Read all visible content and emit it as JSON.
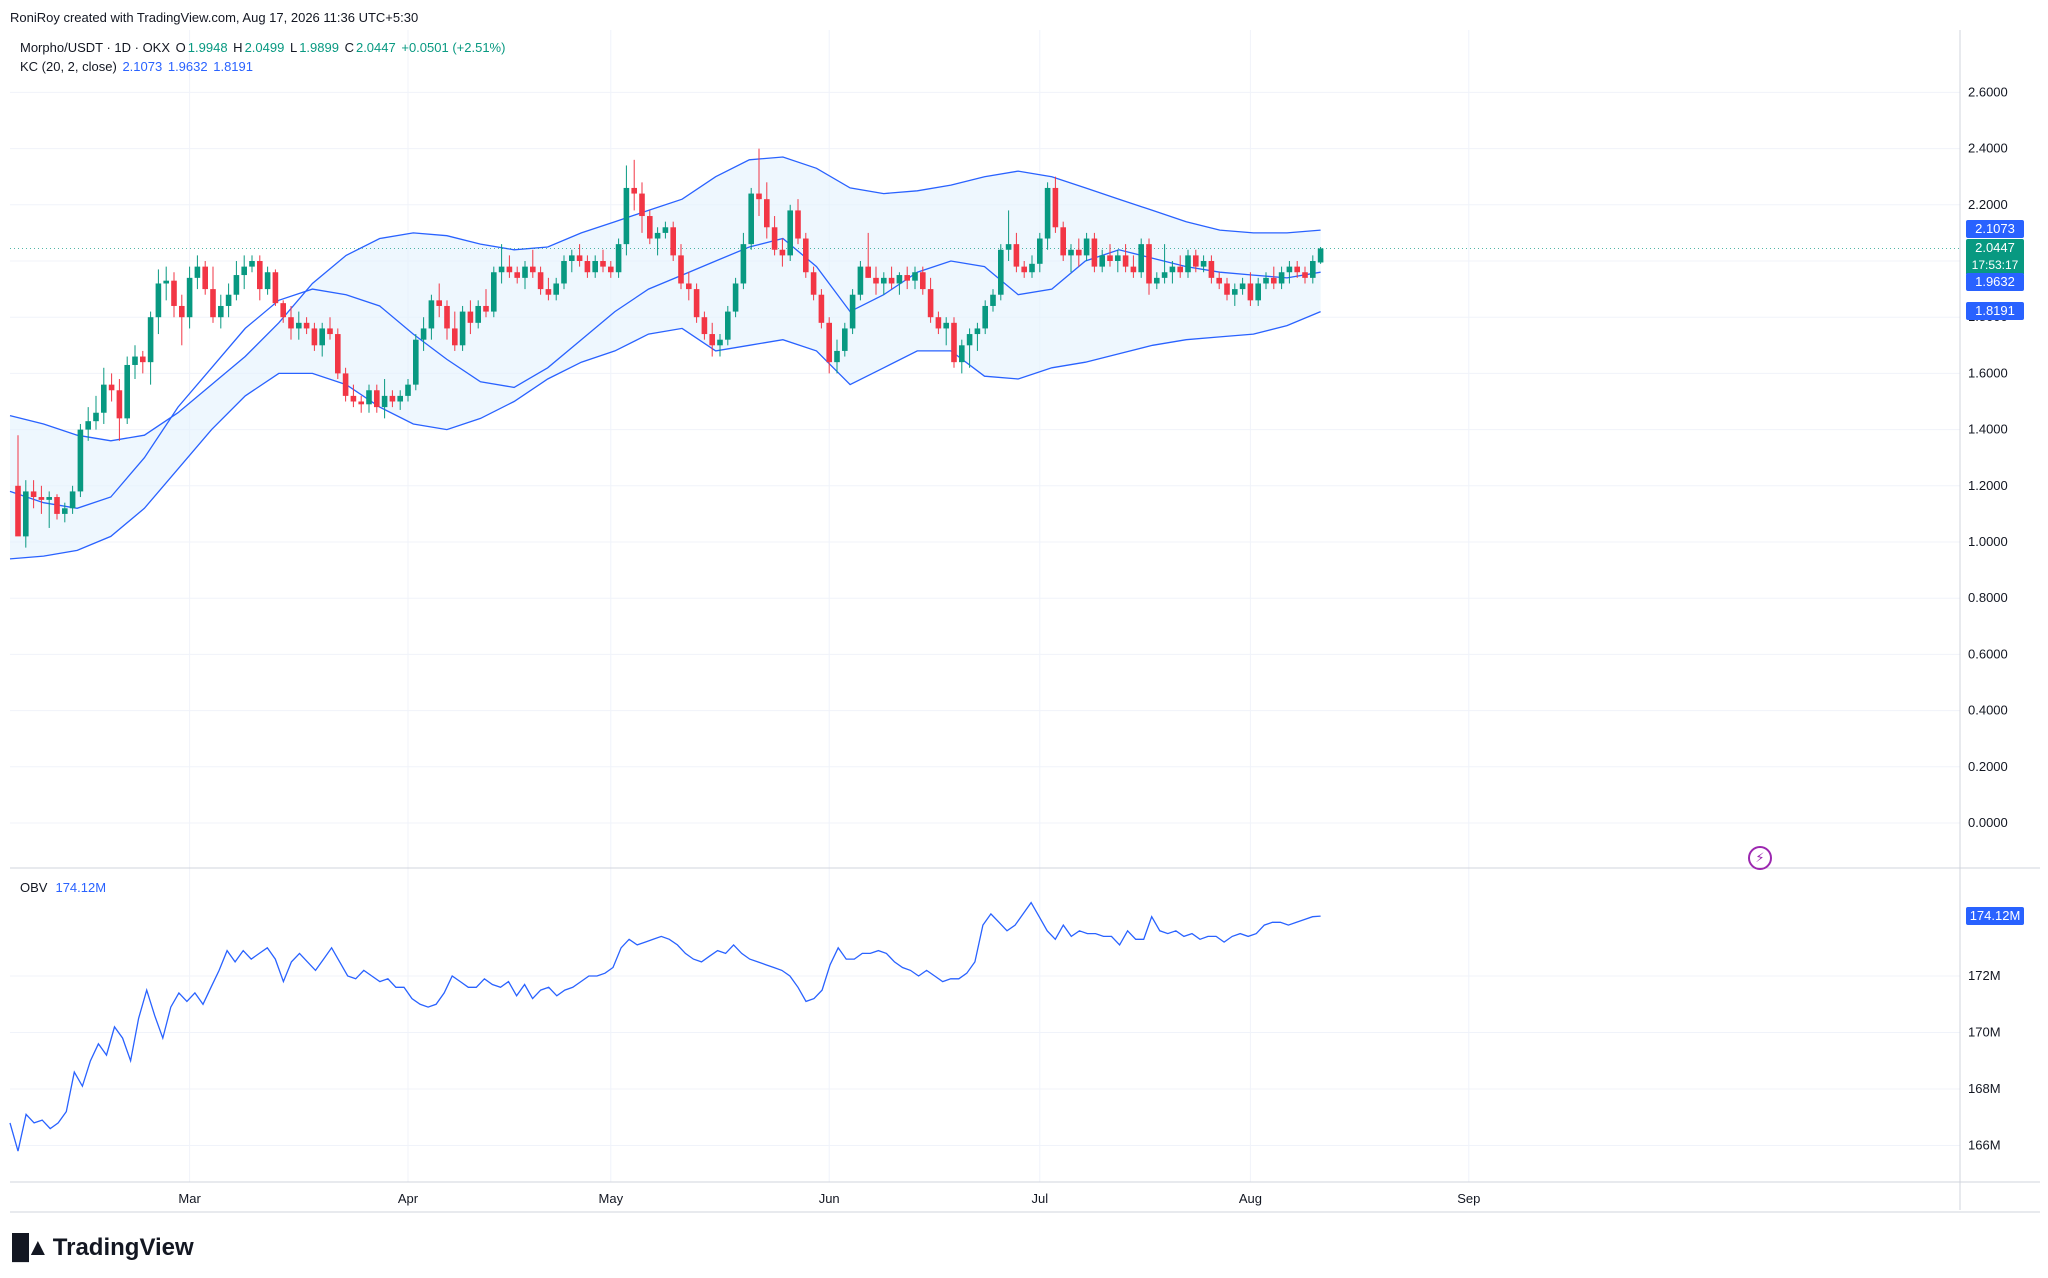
{
  "header": {
    "created_by": "RoniRoy created with TradingView.com, Aug 17, 2026 11:36 UTC+5:30"
  },
  "legend": {
    "symbol": "Morpho/USDT · 1D · OKX",
    "open_label": "O",
    "open": "1.9948",
    "high_label": "H",
    "high": "2.0499",
    "low_label": "L",
    "low": "1.9899",
    "close_label": "C",
    "close": "2.0447",
    "change": "+0.0501 (+2.51%)",
    "kc_label": "KC (20, 2, close)",
    "kc_upper": "2.1073",
    "kc_middle": "1.9632",
    "kc_lower": "1.8191",
    "obv_label": "OBV",
    "obv_value": "174.12M"
  },
  "price_tags": {
    "upper": "2.1073",
    "last": "2.0447",
    "countdown": "17:53:17",
    "middle": "1.9632",
    "lower": "1.8191",
    "obv": "174.12M"
  },
  "colors": {
    "up": "#089981",
    "down": "#f23645",
    "band": "#2962ff",
    "band_fill": "#e3f2fd",
    "grid": "#f0f3fa",
    "axis_text": "#131722"
  },
  "brand": {
    "name": "TradingView"
  },
  "chart_data": [
    {
      "type": "candlestick",
      "title": "Morpho/USDT · 1D · OKX",
      "x_axis_labels": [
        "Mar",
        "Apr",
        "May",
        "Jun",
        "Jul",
        "Aug",
        "Sep"
      ],
      "y_axis_ticks": [
        "2.6000",
        "2.4000",
        "2.2000",
        "2.0000",
        "1.8000",
        "1.6000",
        "1.4000",
        "1.2000",
        "1.0000",
        "0.8000",
        "0.6000",
        "0.4000",
        "0.2000",
        "0.0000"
      ],
      "ylim": [
        -0.1,
        2.8
      ],
      "grid": true,
      "candles_ohlc": [
        [
          1.2,
          1.38,
          1.12,
          1.02
        ],
        [
          1.02,
          1.22,
          0.98,
          1.18
        ],
        [
          1.18,
          1.22,
          1.12,
          1.16
        ],
        [
          1.16,
          1.2,
          1.1,
          1.15
        ],
        [
          1.15,
          1.18,
          1.05,
          1.16
        ],
        [
          1.16,
          1.17,
          1.08,
          1.1
        ],
        [
          1.1,
          1.14,
          1.07,
          1.12
        ],
        [
          1.12,
          1.2,
          1.1,
          1.18
        ],
        [
          1.18,
          1.42,
          1.16,
          1.4
        ],
        [
          1.4,
          1.48,
          1.36,
          1.43
        ],
        [
          1.43,
          1.52,
          1.4,
          1.46
        ],
        [
          1.46,
          1.62,
          1.42,
          1.56
        ],
        [
          1.56,
          1.6,
          1.5,
          1.54
        ],
        [
          1.54,
          1.58,
          1.36,
          1.44
        ],
        [
          1.44,
          1.66,
          1.42,
          1.63
        ],
        [
          1.63,
          1.7,
          1.58,
          1.66
        ],
        [
          1.66,
          1.68,
          1.6,
          1.64
        ],
        [
          1.64,
          1.82,
          1.56,
          1.8
        ],
        [
          1.8,
          1.97,
          1.74,
          1.92
        ],
        [
          1.92,
          1.98,
          1.86,
          1.93
        ],
        [
          1.93,
          1.96,
          1.8,
          1.84
        ],
        [
          1.84,
          1.88,
          1.7,
          1.8
        ],
        [
          1.8,
          1.98,
          1.76,
          1.94
        ],
        [
          1.94,
          2.02,
          1.9,
          1.98
        ],
        [
          1.98,
          2.0,
          1.88,
          1.9
        ],
        [
          1.9,
          1.98,
          1.78,
          1.8
        ],
        [
          1.8,
          1.88,
          1.76,
          1.84
        ],
        [
          1.84,
          1.92,
          1.8,
          1.88
        ],
        [
          1.88,
          2.0,
          1.86,
          1.95
        ],
        [
          1.95,
          2.02,
          1.9,
          1.98
        ],
        [
          1.98,
          2.02,
          1.96,
          2.0
        ],
        [
          2.0,
          2.02,
          1.86,
          1.9
        ],
        [
          1.9,
          1.98,
          1.88,
          1.96
        ],
        [
          1.96,
          1.97,
          1.84,
          1.85
        ],
        [
          1.85,
          1.86,
          1.78,
          1.8
        ],
        [
          1.8,
          1.84,
          1.72,
          1.76
        ],
        [
          1.76,
          1.82,
          1.72,
          1.78
        ],
        [
          1.78,
          1.8,
          1.74,
          1.76
        ],
        [
          1.76,
          1.78,
          1.68,
          1.7
        ],
        [
          1.7,
          1.78,
          1.66,
          1.76
        ],
        [
          1.76,
          1.8,
          1.72,
          1.74
        ],
        [
          1.74,
          1.76,
          1.58,
          1.6
        ],
        [
          1.6,
          1.62,
          1.5,
          1.52
        ],
        [
          1.52,
          1.56,
          1.48,
          1.5
        ],
        [
          1.5,
          1.52,
          1.46,
          1.49
        ],
        [
          1.49,
          1.56,
          1.46,
          1.54
        ],
        [
          1.54,
          1.56,
          1.46,
          1.48
        ],
        [
          1.48,
          1.58,
          1.44,
          1.52
        ],
        [
          1.52,
          1.54,
          1.48,
          1.5
        ],
        [
          1.5,
          1.54,
          1.47,
          1.52
        ],
        [
          1.52,
          1.58,
          1.5,
          1.56
        ],
        [
          1.56,
          1.74,
          1.54,
          1.72
        ],
        [
          1.72,
          1.8,
          1.68,
          1.76
        ],
        [
          1.76,
          1.88,
          1.72,
          1.86
        ],
        [
          1.86,
          1.92,
          1.8,
          1.84
        ],
        [
          1.84,
          1.86,
          1.72,
          1.76
        ],
        [
          1.76,
          1.82,
          1.68,
          1.7
        ],
        [
          1.7,
          1.84,
          1.68,
          1.82
        ],
        [
          1.82,
          1.86,
          1.74,
          1.78
        ],
        [
          1.78,
          1.86,
          1.76,
          1.84
        ],
        [
          1.84,
          1.9,
          1.8,
          1.82
        ],
        [
          1.82,
          1.98,
          1.8,
          1.96
        ],
        [
          1.96,
          2.06,
          1.92,
          1.98
        ],
        [
          1.98,
          2.02,
          1.94,
          1.96
        ],
        [
          1.96,
          1.98,
          1.92,
          1.94
        ],
        [
          1.94,
          2.0,
          1.9,
          1.98
        ],
        [
          1.98,
          2.04,
          1.94,
          1.96
        ],
        [
          1.96,
          1.98,
          1.88,
          1.9
        ],
        [
          1.9,
          1.94,
          1.86,
          1.88
        ],
        [
          1.88,
          1.94,
          1.86,
          1.92
        ],
        [
          1.92,
          2.02,
          1.9,
          2.0
        ],
        [
          2.0,
          2.04,
          1.96,
          2.02
        ],
        [
          2.02,
          2.06,
          1.98,
          2.0
        ],
        [
          2.0,
          2.02,
          1.94,
          1.96
        ],
        [
          1.96,
          2.02,
          1.94,
          2.0
        ],
        [
          2.0,
          2.04,
          1.96,
          1.98
        ],
        [
          1.98,
          2.0,
          1.94,
          1.96
        ],
        [
          1.96,
          2.08,
          1.94,
          2.06
        ],
        [
          2.06,
          2.34,
          2.02,
          2.26
        ],
        [
          2.26,
          2.36,
          2.18,
          2.24
        ],
        [
          2.24,
          2.28,
          2.1,
          2.16
        ],
        [
          2.16,
          2.18,
          2.06,
          2.08
        ],
        [
          2.08,
          2.12,
          2.02,
          2.1
        ],
        [
          2.1,
          2.14,
          2.08,
          2.12
        ],
        [
          2.12,
          2.14,
          2.0,
          2.02
        ],
        [
          2.02,
          2.06,
          1.9,
          1.92
        ],
        [
          1.92,
          1.96,
          1.86,
          1.9
        ],
        [
          1.9,
          1.92,
          1.78,
          1.8
        ],
        [
          1.8,
          1.82,
          1.72,
          1.74
        ],
        [
          1.74,
          1.78,
          1.66,
          1.7
        ],
        [
          1.7,
          1.74,
          1.66,
          1.72
        ],
        [
          1.72,
          1.84,
          1.7,
          1.82
        ],
        [
          1.82,
          1.94,
          1.8,
          1.92
        ],
        [
          1.92,
          2.1,
          1.9,
          2.06
        ],
        [
          2.06,
          2.26,
          2.04,
          2.24
        ],
        [
          2.24,
          2.4,
          2.16,
          2.22
        ],
        [
          2.22,
          2.28,
          2.08,
          2.12
        ],
        [
          2.12,
          2.16,
          2.02,
          2.04
        ],
        [
          2.04,
          2.08,
          1.98,
          2.02
        ],
        [
          2.02,
          2.2,
          2.0,
          2.18
        ],
        [
          2.18,
          2.22,
          2.06,
          2.08
        ],
        [
          2.08,
          2.1,
          1.94,
          1.96
        ],
        [
          1.96,
          1.98,
          1.86,
          1.88
        ],
        [
          1.88,
          1.9,
          1.76,
          1.78
        ],
        [
          1.78,
          1.8,
          1.6,
          1.64
        ],
        [
          1.64,
          1.72,
          1.6,
          1.68
        ],
        [
          1.68,
          1.78,
          1.66,
          1.76
        ],
        [
          1.76,
          1.9,
          1.74,
          1.88
        ],
        [
          1.88,
          2.0,
          1.86,
          1.98
        ],
        [
          1.98,
          2.1,
          1.94,
          1.94
        ],
        [
          1.94,
          1.98,
          1.88,
          1.92
        ],
        [
          1.92,
          1.96,
          1.88,
          1.94
        ],
        [
          1.94,
          1.98,
          1.9,
          1.92
        ],
        [
          1.92,
          1.96,
          1.88,
          1.95
        ],
        [
          1.95,
          1.98,
          1.9,
          1.93
        ],
        [
          1.93,
          1.98,
          1.9,
          1.96
        ],
        [
          1.96,
          1.98,
          1.88,
          1.9
        ],
        [
          1.9,
          1.94,
          1.78,
          1.8
        ],
        [
          1.8,
          1.82,
          1.74,
          1.76
        ],
        [
          1.76,
          1.8,
          1.7,
          1.78
        ],
        [
          1.78,
          1.8,
          1.62,
          1.64
        ],
        [
          1.64,
          1.72,
          1.6,
          1.7
        ],
        [
          1.7,
          1.76,
          1.62,
          1.74
        ],
        [
          1.74,
          1.78,
          1.68,
          1.76
        ],
        [
          1.76,
          1.86,
          1.74,
          1.84
        ],
        [
          1.84,
          1.9,
          1.82,
          1.88
        ],
        [
          1.88,
          2.06,
          1.86,
          2.04
        ],
        [
          2.04,
          2.18,
          2.0,
          2.06
        ],
        [
          2.06,
          2.1,
          1.96,
          1.98
        ],
        [
          1.98,
          2.0,
          1.94,
          1.96
        ],
        [
          1.96,
          2.02,
          1.94,
          1.99
        ],
        [
          1.99,
          2.1,
          1.96,
          2.08
        ],
        [
          2.08,
          2.28,
          2.04,
          2.26
        ],
        [
          2.26,
          2.3,
          2.1,
          2.12
        ],
        [
          2.12,
          2.14,
          2.0,
          2.02
        ],
        [
          2.02,
          2.06,
          1.96,
          2.04
        ],
        [
          2.04,
          2.08,
          1.98,
          2.02
        ],
        [
          2.02,
          2.1,
          2.0,
          2.08
        ],
        [
          2.08,
          2.1,
          1.96,
          1.98
        ],
        [
          1.98,
          2.04,
          1.96,
          2.02
        ],
        [
          2.02,
          2.06,
          1.98,
          2.0
        ],
        [
          2.0,
          2.04,
          1.96,
          2.02
        ],
        [
          2.02,
          2.06,
          1.96,
          1.98
        ],
        [
          1.98,
          2.02,
          1.94,
          1.96
        ],
        [
          1.96,
          2.08,
          1.94,
          2.06
        ],
        [
          2.06,
          2.08,
          1.88,
          1.92
        ],
        [
          1.92,
          1.96,
          1.9,
          1.94
        ],
        [
          1.94,
          2.06,
          1.92,
          1.96
        ],
        [
          1.96,
          2.0,
          1.92,
          1.98
        ],
        [
          1.98,
          2.02,
          1.94,
          1.96
        ],
        [
          1.96,
          2.04,
          1.94,
          2.02
        ],
        [
          2.02,
          2.04,
          1.96,
          1.98
        ],
        [
          1.98,
          2.02,
          1.96,
          2.0
        ],
        [
          2.0,
          2.02,
          1.92,
          1.94
        ],
        [
          1.94,
          1.96,
          1.9,
          1.92
        ],
        [
          1.92,
          1.94,
          1.86,
          1.88
        ],
        [
          1.88,
          1.92,
          1.84,
          1.9
        ],
        [
          1.9,
          1.94,
          1.88,
          1.92
        ],
        [
          1.92,
          1.96,
          1.84,
          1.86
        ],
        [
          1.86,
          1.94,
          1.84,
          1.92
        ],
        [
          1.92,
          1.96,
          1.9,
          1.94
        ],
        [
          1.94,
          1.98,
          1.9,
          1.92
        ],
        [
          1.92,
          1.98,
          1.9,
          1.96
        ],
        [
          1.96,
          2.0,
          1.92,
          1.98
        ],
        [
          1.98,
          2.0,
          1.94,
          1.96
        ],
        [
          1.96,
          1.98,
          1.92,
          1.94
        ],
        [
          1.94,
          2.02,
          1.92,
          2.0
        ],
        [
          1.9948,
          2.0499,
          1.9899,
          2.0447
        ]
      ],
      "kc_upper": [
        1.45,
        1.42,
        1.38,
        1.36,
        1.38,
        1.46,
        1.56,
        1.66,
        1.78,
        1.92,
        2.02,
        2.08,
        2.1,
        2.09,
        2.06,
        2.04,
        2.05,
        2.1,
        2.14,
        2.18,
        2.22,
        2.3,
        2.36,
        2.37,
        2.33,
        2.26,
        2.24,
        2.25,
        2.27,
        2.3,
        2.32,
        2.3,
        2.26,
        2.22,
        2.18,
        2.14,
        2.11,
        2.1,
        2.1,
        2.11
      ],
      "kc_middle": [
        1.18,
        1.14,
        1.12,
        1.16,
        1.3,
        1.48,
        1.62,
        1.76,
        1.86,
        1.9,
        1.88,
        1.84,
        1.74,
        1.65,
        1.57,
        1.55,
        1.62,
        1.72,
        1.82,
        1.9,
        1.95,
        2.0,
        2.05,
        2.08,
        1.98,
        1.82,
        1.88,
        1.96,
        2.0,
        1.98,
        1.88,
        1.9,
        2.0,
        2.04,
        2.01,
        1.98,
        1.96,
        1.95,
        1.94,
        1.96
      ],
      "kc_lower": [
        0.94,
        0.95,
        0.97,
        1.02,
        1.12,
        1.26,
        1.4,
        1.52,
        1.6,
        1.6,
        1.56,
        1.48,
        1.42,
        1.4,
        1.44,
        1.5,
        1.58,
        1.64,
        1.68,
        1.74,
        1.76,
        1.68,
        1.7,
        1.72,
        1.68,
        1.56,
        1.62,
        1.68,
        1.68,
        1.59,
        1.58,
        1.62,
        1.64,
        1.67,
        1.7,
        1.72,
        1.73,
        1.74,
        1.77,
        1.82
      ]
    },
    {
      "type": "line",
      "title": "OBV",
      "y_axis_ticks": [
        "166M",
        "168M",
        "170M",
        "172M"
      ],
      "ylim": [
        165,
        176
      ],
      "values": [
        166.8,
        165.8,
        167.1,
        166.8,
        166.9,
        166.6,
        166.8,
        167.2,
        168.6,
        168.1,
        169.0,
        169.6,
        169.2,
        170.2,
        169.8,
        169.0,
        170.5,
        171.5,
        170.6,
        169.8,
        170.9,
        171.4,
        171.1,
        171.4,
        171.0,
        171.6,
        172.2,
        172.9,
        172.5,
        172.9,
        172.6,
        172.8,
        173.0,
        172.6,
        171.8,
        172.5,
        172.8,
        172.5,
        172.2,
        172.6,
        173.0,
        172.5,
        172.0,
        171.9,
        172.2,
        172.0,
        171.8,
        171.9,
        171.6,
        171.6,
        171.2,
        171.0,
        170.9,
        171.0,
        171.4,
        172.0,
        171.8,
        171.6,
        171.6,
        171.9,
        171.7,
        171.6,
        171.8,
        171.3,
        171.7,
        171.2,
        171.5,
        171.6,
        171.3,
        171.5,
        171.6,
        171.8,
        172.0,
        172.0,
        172.1,
        172.3,
        173.0,
        173.3,
        173.1,
        173.2,
        173.3,
        173.4,
        173.3,
        173.1,
        172.8,
        172.6,
        172.5,
        172.7,
        172.9,
        172.8,
        173.1,
        172.8,
        172.6,
        172.5,
        172.4,
        172.3,
        172.2,
        172.0,
        171.6,
        171.1,
        171.2,
        171.5,
        172.4,
        173.0,
        172.6,
        172.6,
        172.8,
        172.8,
        172.9,
        172.8,
        172.5,
        172.3,
        172.2,
        172.0,
        172.2,
        172.0,
        171.8,
        171.9,
        171.9,
        172.1,
        172.5,
        173.8,
        174.2,
        173.9,
        173.6,
        173.8,
        174.2,
        174.6,
        174.1,
        173.6,
        173.3,
        173.8,
        173.4,
        173.6,
        173.5,
        173.5,
        173.4,
        173.4,
        173.1,
        173.6,
        173.3,
        173.3,
        174.1,
        173.6,
        173.5,
        173.6,
        173.4,
        173.5,
        173.3,
        173.4,
        173.4,
        173.2,
        173.4,
        173.5,
        173.4,
        173.5,
        173.8,
        173.9,
        173.9,
        173.8,
        173.9,
        174.0,
        174.1,
        174.12
      ]
    }
  ]
}
